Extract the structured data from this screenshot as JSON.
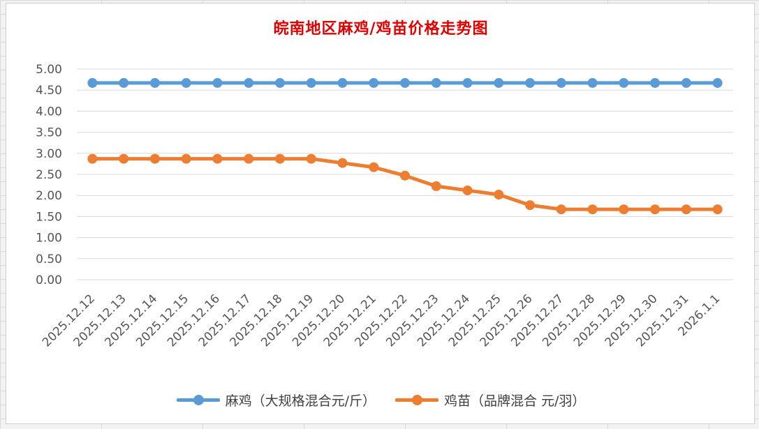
{
  "colors": {
    "series1": "#5b9bd5",
    "series2": "#ed7d31",
    "title": "#e00000",
    "grid": "#d9d9d9",
    "axis_text": "#555555"
  },
  "chart_data": {
    "type": "line",
    "title": "皖南地区麻鸡/鸡苗价格走势图",
    "categories": [
      "2025.12.12",
      "2025.12.13",
      "2025.12.14",
      "2025.12.15",
      "2025.12.16",
      "2025.12.17",
      "2025.12.18",
      "2025.12.19",
      "2025.12.20",
      "2025.12.21",
      "2025.12.22",
      "2025.12.23",
      "2025.12.24",
      "2025.12.25",
      "2025.12.26",
      "2025.12.27",
      "2025.12.28",
      "2025.12.29",
      "2025.12.30",
      "2025.12.31",
      "2026.1.1"
    ],
    "series": [
      {
        "name": "麻鸡（大规格混合元/斤）",
        "values": [
          4.67,
          4.67,
          4.67,
          4.67,
          4.67,
          4.67,
          4.67,
          4.67,
          4.67,
          4.67,
          4.67,
          4.67,
          4.67,
          4.67,
          4.67,
          4.67,
          4.67,
          4.67,
          4.67,
          4.67,
          4.67
        ]
      },
      {
        "name": "鸡苗（品牌混合 元/羽）",
        "values": [
          2.87,
          2.87,
          2.87,
          2.87,
          2.87,
          2.87,
          2.87,
          2.87,
          2.77,
          2.67,
          2.47,
          2.22,
          2.12,
          2.02,
          1.77,
          1.67,
          1.67,
          1.67,
          1.67,
          1.67,
          1.67
        ]
      }
    ],
    "yticks": [
      "0.00",
      "0.50",
      "1.00",
      "1.50",
      "2.00",
      "2.50",
      "3.00",
      "3.50",
      "4.00",
      "4.50",
      "5.00"
    ],
    "ylim": [
      0,
      5
    ],
    "grid": true,
    "legend_position": "bottom"
  }
}
